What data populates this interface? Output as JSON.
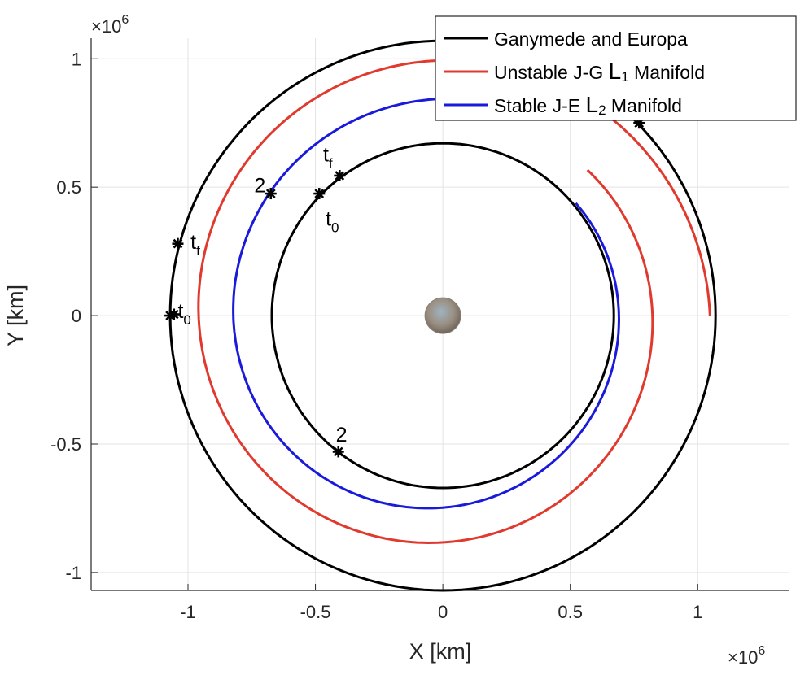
{
  "chart_data": {
    "type": "line",
    "title": "",
    "xlabel": "X [km]",
    "ylabel": "Y [km]",
    "x_exponent_label": "×10",
    "x_exponent_power": "6",
    "y_exponent_label": "×10",
    "y_exponent_power": "6",
    "xlim": [
      -1.38,
      1.36
    ],
    "ylim": [
      -1.07,
      1.08
    ],
    "units_multiplier": 1000000,
    "x_ticks": [
      -1,
      -0.5,
      0,
      0.5,
      1
    ],
    "x_tick_labels": [
      "-1",
      "-0.5",
      "0",
      "0.5",
      "1"
    ],
    "y_ticks": [
      -1,
      -0.5,
      0,
      0.5,
      1
    ],
    "y_tick_labels": [
      "-1",
      "-0.5",
      "0",
      "0.5",
      "1"
    ],
    "grid": true,
    "legend_position": "top-right",
    "legend": [
      {
        "label": "Ganymede and Europa",
        "sub_prefix": "",
        "sub_main": "",
        "sub_index": "",
        "sub_suffix": "",
        "color": "#000000"
      },
      {
        "label": "Unstable J-G ",
        "sub_main": "L",
        "sub_index": "1",
        "sub_suffix": " Manifold",
        "color": "#e03a2f"
      },
      {
        "label": "Stable J-E ",
        "sub_main": "L",
        "sub_index": "2",
        "sub_suffix": " Manifold",
        "color": "#1a1adb"
      }
    ],
    "series": [
      {
        "name": "Ganymede and Europa",
        "color": "#000000",
        "kind": "circle",
        "r": 1.07,
        "cx": 0,
        "cy": 0
      },
      {
        "name": "Ganymede and Europa",
        "color": "#000000",
        "kind": "circle",
        "r": 0.671,
        "cx": 0,
        "cy": 0
      },
      {
        "name": "Unstable J-G L1 Manifold",
        "color": "#e03a2f",
        "kind": "spiral",
        "theta_start_deg": 0,
        "theta_end_deg": 405,
        "r_start": 1.048,
        "r_end": 0.802,
        "center_drift": [
          -0.02,
          0.0
        ]
      },
      {
        "name": "Stable J-E L2 Manifold",
        "color": "#1a1adb",
        "kind": "spiral",
        "theta_start_deg": 75,
        "theta_end_deg": 400,
        "r_start": 0.852,
        "r_end": 0.681,
        "center_drift": [
          -0.03,
          0.0
        ]
      }
    ],
    "markers": [
      {
        "x": -1.07,
        "y": 0.0
      },
      {
        "x": -1.055,
        "y": 0.005
      },
      {
        "x": -1.04,
        "y": 0.28
      },
      {
        "x": -0.675,
        "y": 0.475
      },
      {
        "x": -0.485,
        "y": 0.475
      },
      {
        "x": -0.405,
        "y": 0.545
      },
      {
        "x": -0.41,
        "y": -0.53
      },
      {
        "x": 0.77,
        "y": 0.75
      }
    ],
    "annotations": [
      {
        "text": "t",
        "sub": "0",
        "x": -1.04,
        "y": -0.01
      },
      {
        "text": "t",
        "sub": "f",
        "x": -0.99,
        "y": 0.26
      },
      {
        "text": "2",
        "x": -0.74,
        "y": 0.48
      },
      {
        "text": "t",
        "sub": "f",
        "x": -0.47,
        "y": 0.6
      },
      {
        "text": "t",
        "sub": "0",
        "x": -0.46,
        "y": 0.35
      },
      {
        "text": "2",
        "x": -0.42,
        "y": -0.49
      }
    ]
  }
}
